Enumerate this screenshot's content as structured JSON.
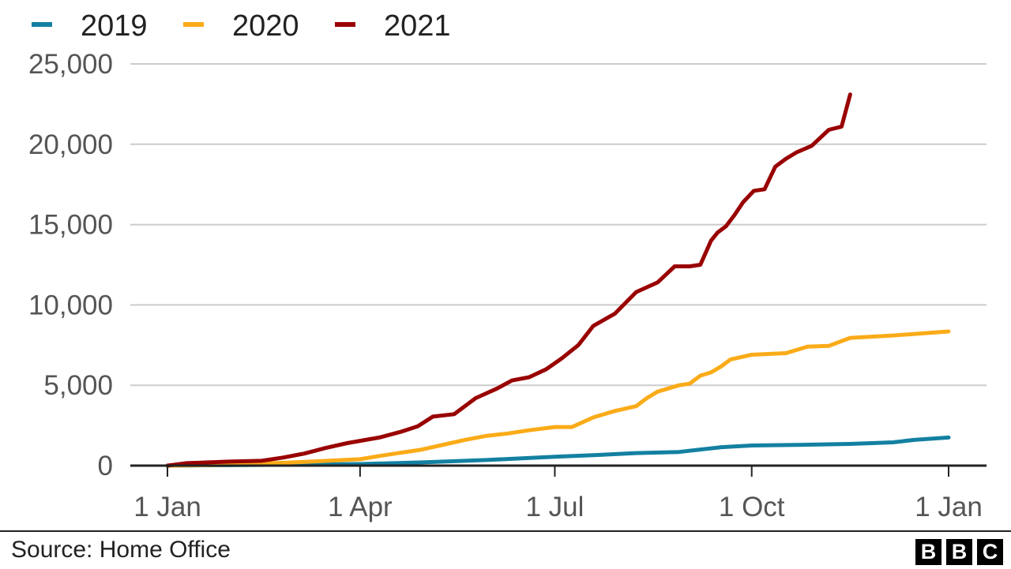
{
  "chart_data": {
    "type": "line",
    "title": "",
    "xlabel": "",
    "ylabel": "",
    "ylim": [
      0,
      25000
    ],
    "yticks": [
      0,
      5000,
      10000,
      15000,
      20000,
      25000
    ],
    "ytick_labels": [
      "0",
      "5,000",
      "10,000",
      "15,000",
      "20,000",
      "25,000"
    ],
    "x_unit": "day of year",
    "xlim": [
      1,
      366
    ],
    "xticks": [
      1,
      91,
      182,
      274,
      366
    ],
    "xtick_labels": [
      "1 Jan",
      "1 Apr",
      "1 Jul",
      "1 Oct",
      "1 Jan"
    ],
    "grid": true,
    "legend_position": "top-left",
    "series": [
      {
        "name": "2019",
        "color": "#1380A1",
        "x": [
          1,
          30,
          60,
          91,
          120,
          150,
          182,
          200,
          220,
          240,
          250,
          260,
          274,
          300,
          320,
          340,
          350,
          366
        ],
        "y": [
          0,
          30,
          60,
          100,
          200,
          350,
          550,
          650,
          780,
          850,
          1000,
          1150,
          1250,
          1300,
          1350,
          1450,
          1600,
          1750
        ]
      },
      {
        "name": "2020",
        "color": "#FAAB18",
        "x": [
          1,
          30,
          60,
          91,
          100,
          110,
          120,
          130,
          140,
          150,
          160,
          170,
          182,
          190,
          200,
          210,
          220,
          225,
          230,
          240,
          245,
          250,
          255,
          260,
          264,
          274,
          290,
          300,
          310,
          320,
          340,
          366
        ],
        "y": [
          0,
          50,
          200,
          400,
          600,
          800,
          1000,
          1300,
          1600,
          1850,
          2000,
          2200,
          2400,
          2400,
          3000,
          3400,
          3700,
          4200,
          4600,
          5000,
          5100,
          5600,
          5800,
          6200,
          6600,
          6900,
          7000,
          7400,
          7450,
          7950,
          8100,
          8350
        ]
      },
      {
        "name": "2021",
        "color": "#990000",
        "x": [
          1,
          10,
          30,
          45,
          55,
          65,
          75,
          85,
          100,
          110,
          118,
          125,
          135,
          145,
          155,
          162,
          170,
          178,
          185,
          193,
          200,
          210,
          220,
          230,
          238,
          245,
          250,
          255,
          258,
          262,
          266,
          270,
          275,
          280,
          285,
          290,
          295,
          302,
          310,
          316,
          320
        ],
        "y": [
          0,
          150,
          250,
          300,
          500,
          750,
          1100,
          1400,
          1750,
          2100,
          2450,
          3050,
          3200,
          4200,
          4800,
          5300,
          5500,
          6000,
          6650,
          7500,
          8700,
          9450,
          10800,
          11400,
          12400,
          12400,
          12500,
          14000,
          14500,
          14900,
          15600,
          16400,
          17100,
          17200,
          18600,
          19100,
          19500,
          19900,
          20900,
          21100,
          23100
        ]
      }
    ]
  },
  "footer": {
    "source": "Source: Home Office",
    "logo_letters": [
      "B",
      "B",
      "C"
    ]
  }
}
